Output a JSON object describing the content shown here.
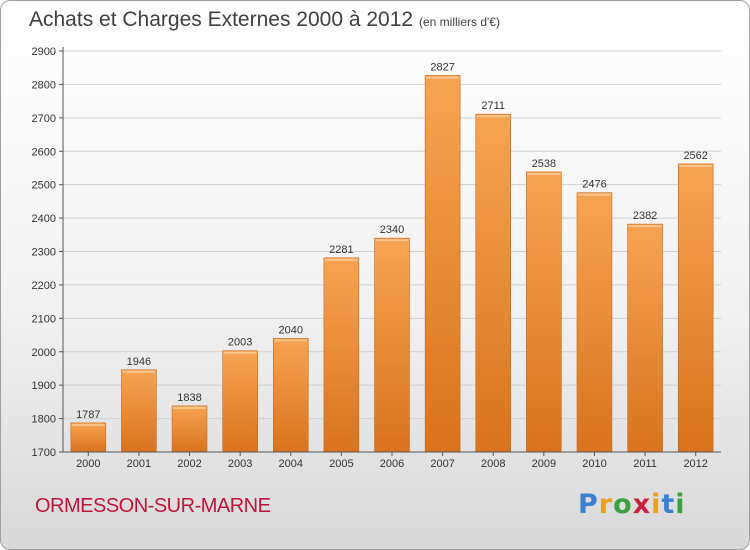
{
  "header": {
    "title": "Achats et Charges Externes 2000 à 2012",
    "unit_note": "(en milliers d'€)"
  },
  "footer": {
    "commune": "ORMESSON-SUR-MARNE",
    "brand_letters": [
      {
        "ch": "P",
        "color": "#3a7fd0"
      },
      {
        "ch": "r",
        "color": "#e8a020"
      },
      {
        "ch": "o",
        "color": "#3aa040"
      },
      {
        "ch": "x",
        "color": "#d02040"
      },
      {
        "ch": "i",
        "color": "#e8a020"
      },
      {
        "ch": "t",
        "color": "#3a7fd0"
      },
      {
        "ch": "i",
        "color": "#3aa040"
      }
    ]
  },
  "colors": {
    "bar_light": "#f7a452",
    "bar_dark": "#d9731d",
    "axis": "#555555",
    "grid": "#d0d0d0"
  },
  "chart_data": {
    "type": "bar",
    "title": "Achats et Charges Externes 2000 à 2012",
    "subtitle": "(en milliers d'€)",
    "categories": [
      "2000",
      "2001",
      "2002",
      "2003",
      "2004",
      "2005",
      "2006",
      "2007",
      "2008",
      "2009",
      "2010",
      "2011",
      "2012"
    ],
    "values": [
      1787,
      1946,
      1838,
      2003,
      2040,
      2281,
      2340,
      2827,
      2711,
      2538,
      2476,
      2382,
      2562
    ],
    "ylim": [
      1700,
      2900
    ],
    "yticks": [
      1700,
      1800,
      1900,
      2000,
      2100,
      2200,
      2300,
      2400,
      2500,
      2600,
      2700,
      2800,
      2900
    ],
    "grid": true,
    "data_labels": true
  }
}
